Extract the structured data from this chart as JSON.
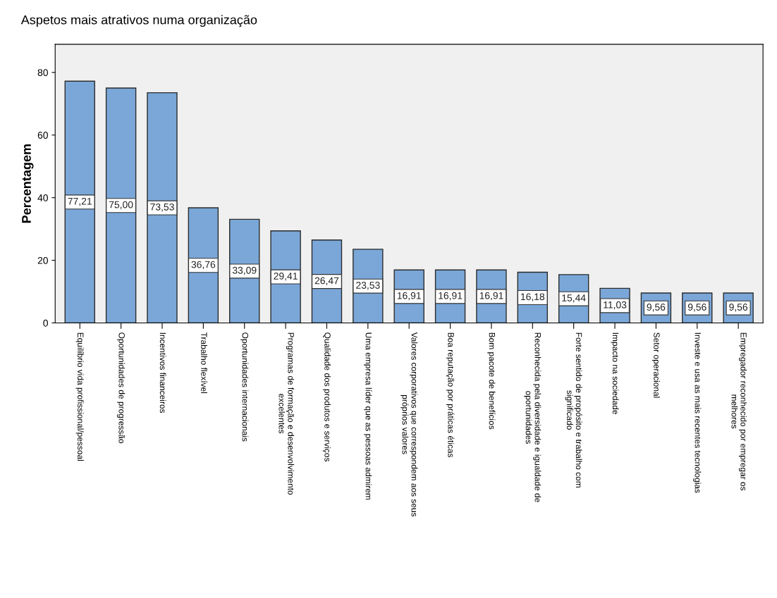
{
  "chart_data": {
    "type": "bar",
    "title": "Aspetos mais atrativos numa organização",
    "ylabel": "Percentagem",
    "categories": [
      "Equilíbrio vida profissional/pessoal",
      "Oportunidades de progressão",
      "Incentivos financeiros",
      "Trabalho flexível",
      "Oportunidades internacionais",
      "Programas de formação e desenvolvimento\nexcelentes",
      "Qualidade dos produtos e serviços",
      "Uma empresa líder que as pessoas admirem",
      "Valores corporativos que correspondem aos seus\npróprios valores",
      "Boa reputação por práticas éticas",
      "Bom pacote de benefícios",
      "Reconhecida pela diversidade e igualdade de\noportunidades",
      "Forte sentido de propósito e trabalho com\nsignificado",
      "Impacto na sociedade",
      "Setor operacional",
      "Investe e usa as mais recentes tecnologias",
      "Empregador reconhecido por empregar os\nmelhores"
    ],
    "values": [
      77.21,
      75.0,
      73.53,
      36.76,
      33.09,
      29.41,
      26.47,
      23.53,
      16.91,
      16.91,
      16.91,
      16.18,
      15.44,
      11.03,
      9.56,
      9.56,
      9.56
    ],
    "value_labels": [
      "77,21",
      "75,00",
      "73,53",
      "36,76",
      "33,09",
      "29,41",
      "26,47",
      "23,53",
      "16,91",
      "16,91",
      "16,91",
      "16,18",
      "15,44",
      "11,03",
      "9,56",
      "9,56",
      "9,56"
    ],
    "color": "#7aa7d8",
    "ylim": [
      0,
      89
    ],
    "yticks": [
      0,
      20,
      40,
      60,
      80
    ],
    "grid": false,
    "legend": false
  }
}
